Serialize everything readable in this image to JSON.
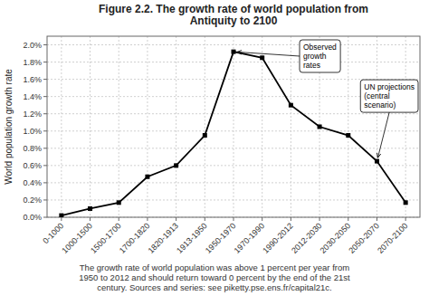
{
  "chart_data": {
    "type": "line",
    "title": "Figure 2.2. The growth rate of world population from\nAntiquity to 2100",
    "y_label": "World population growth rate",
    "caption": "The growth rate of world population was above 1 percent per year from\n1950 to 2012 and should return toward 0 percent by the end of the 21st\ncentury. Sources and series: see piketty.pse.ens.fr/capital21c.",
    "categories": [
      "0-1000",
      "1000-1500",
      "1500-1700",
      "1700-1820",
      "1820-1913",
      "1913-1950",
      "1950-1970",
      "1970-1990",
      "1990-2012",
      "2012-2030",
      "2030-2050",
      "2050-2070",
      "2070-2100"
    ],
    "values": [
      0.02,
      0.1,
      0.17,
      0.47,
      0.6,
      0.95,
      1.92,
      1.85,
      1.3,
      1.05,
      0.95,
      0.65,
      0.17
    ],
    "color": "#000000",
    "marker": "square",
    "line_style": "solid",
    "grid": true,
    "ylim": [
      0.0,
      2.1
    ],
    "yticks": [
      {
        "value": 0.0,
        "label": "0.0%"
      },
      {
        "value": 0.2,
        "label": "0.2%"
      },
      {
        "value": 0.4,
        "label": "0.4%"
      },
      {
        "value": 0.6,
        "label": "0.6%"
      },
      {
        "value": 0.8,
        "label": "0.8%"
      },
      {
        "value": 1.0,
        "label": "1.0%"
      },
      {
        "value": 1.2,
        "label": "1.2%"
      },
      {
        "value": 1.4,
        "label": "1.4%"
      },
      {
        "value": 1.6,
        "label": "1.6%"
      },
      {
        "value": 1.8,
        "label": "1.8%"
      },
      {
        "value": 2.0,
        "label": "2.0%"
      }
    ],
    "annotations": [
      {
        "text": "Observed\ngrowth\nrates",
        "category": "1950-1970",
        "value": 1.92
      },
      {
        "text": "UN projections\n(central\nscenario)",
        "category": "2050-2070",
        "value": 0.65
      }
    ]
  }
}
